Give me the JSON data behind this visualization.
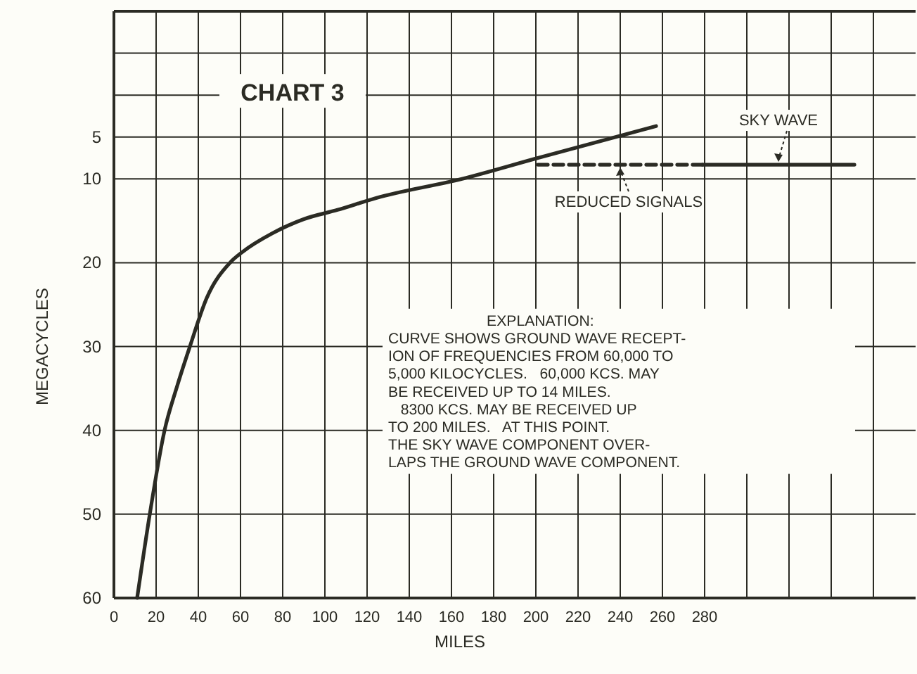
{
  "chart_data": {
    "type": "line",
    "title": "CHART 3",
    "xlabel": "MILES",
    "ylabel": "MEGACYCLES",
    "xlim": [
      0,
      380
    ],
    "ylim": [
      60,
      -10
    ],
    "xticks": [
      0,
      20,
      40,
      60,
      80,
      100,
      120,
      140,
      160,
      180,
      200,
      220,
      240,
      260,
      280,
      {
        "value": 300,
        "label": null
      },
      {
        "value": 320,
        "label": null
      },
      {
        "value": 340,
        "label": null
      },
      {
        "value": 360,
        "label": null
      }
    ],
    "yticks": [
      {
        "value": -5,
        "label": null
      },
      {
        "value": 0,
        "label": null
      },
      5,
      10,
      20,
      30,
      40,
      50,
      60
    ],
    "grid": true,
    "marker": "none",
    "series": [
      {
        "color": "#2b2b24",
        "line_style": "solid",
        "x": [
          11,
          17,
          24,
          30,
          36,
          44,
          55,
          61,
          75,
          90,
          106,
          124,
          165,
          201,
          257
        ],
        "values": [
          60,
          50,
          40,
          34.7,
          30,
          24.2,
          20,
          18.7,
          16.5,
          14.8,
          13.7,
          12.3,
          10,
          7.5,
          3.7
        ]
      },
      {
        "name": "REDUCED SIGNALS",
        "color": "#2b2b24",
        "line_style": "dashed",
        "x": [
          201,
          279
        ],
        "values": [
          8.3,
          8.3
        ]
      },
      {
        "name": "SKY WAVE",
        "color": "#2b2b24",
        "line_style": "solid",
        "x": [
          279,
          351
        ],
        "values": [
          8.3,
          8.3
        ]
      }
    ],
    "annotations": [
      "EXPLANATION:\nCURVE SHOWS GROUND WAVE RECEPT-\nION OF FREQUENCIES FROM 60,000 TO\n5,000 KILOCYCLES.   60,000 KCS. MAY\nBE RECEIVED UP TO 14 MILES.\n   8300 KCS. MAY BE RECEIVED UP\nTO 200 MILES.   AT THIS POINT.\nTHE SKY WAVE COMPONENT OVER-\nLAPS THE GROUND WAVE COMPONENT."
    ]
  }
}
